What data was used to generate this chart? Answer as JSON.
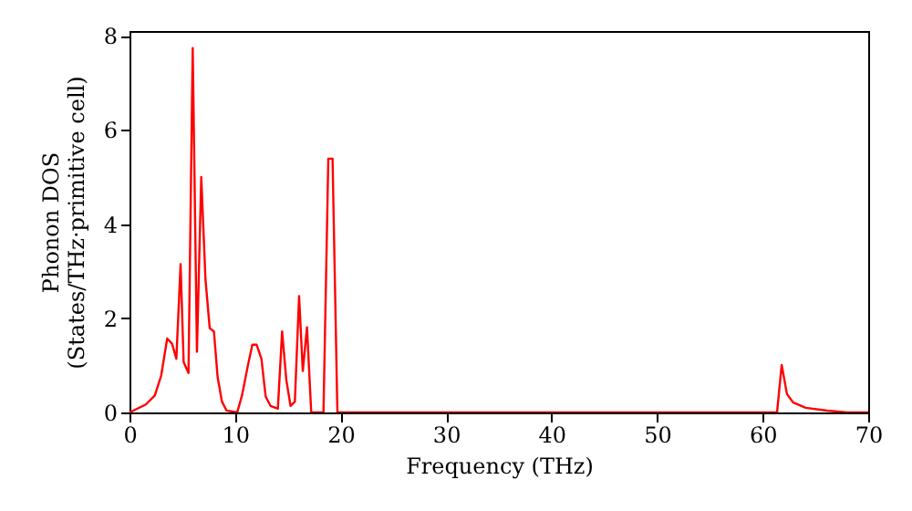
{
  "chart_data": {
    "type": "line",
    "xlabel": "Frequency (THz)",
    "ylabel": "Phonon DOS\n(States/THz·primitive cell)",
    "xlim": [
      0,
      70
    ],
    "xticks": [
      0,
      10,
      20,
      30,
      40,
      50,
      60,
      70
    ],
    "ylim": [
      0,
      8.1
    ],
    "yticks": [
      0,
      2,
      4,
      6,
      8
    ],
    "grid": false,
    "series": [
      {
        "color": "#ff0000",
        "x": [
          0,
          1.55,
          2.4,
          3.0,
          3.57,
          4.03,
          4.44,
          4.84,
          5.13,
          5.59,
          5.99,
          6.39,
          6.8,
          7.2,
          7.6,
          8.0,
          8.35,
          8.76,
          9.2,
          10.2,
          10.66,
          11.23,
          11.64,
          12.04,
          12.5,
          12.9,
          13.36,
          14.06,
          14.46,
          14.86,
          15.26,
          15.67,
          16.07,
          16.42,
          16.82,
          17.22,
          18.38,
          18.84,
          19.24,
          19.7,
          61.36,
          61.8,
          62.3,
          62.9,
          64.07,
          66.1,
          68,
          70
        ],
        "values": [
          0,
          0.17,
          0.36,
          0.78,
          1.57,
          1.46,
          1.14,
          3.15,
          1.07,
          0.84,
          7.74,
          1.29,
          5.0,
          2.82,
          1.79,
          1.72,
          0.75,
          0.23,
          0.04,
          0,
          0.36,
          1.01,
          1.44,
          1.44,
          1.14,
          0.34,
          0.14,
          0.08,
          1.72,
          0.69,
          0.14,
          0.23,
          2.47,
          0.88,
          1.81,
          0,
          0,
          5.39,
          5.39,
          0,
          0,
          1.01,
          0.39,
          0.21,
          0.1,
          0.04,
          0,
          0
        ]
      }
    ]
  }
}
